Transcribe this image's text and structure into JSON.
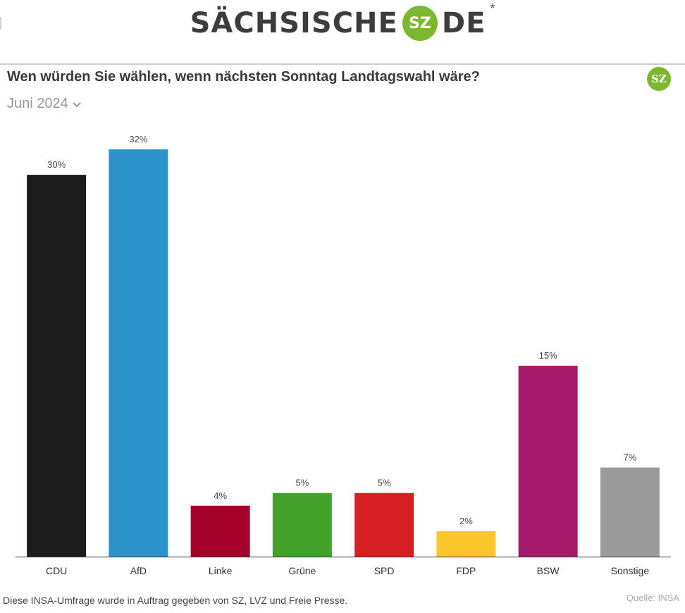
{
  "brand": {
    "word1": "SÄCHSISCHE",
    "badge": "SZ",
    "word2": "DE",
    "star": "*"
  },
  "logo_small": "SZ",
  "chart_data": {
    "type": "bar",
    "title": "Wen würden Sie wählen, wenn nächsten Sonntag Landtagswahl wäre?",
    "subtitle": "Juni 2024",
    "categories": [
      "CDU",
      "AfD",
      "Linke",
      "Grüne",
      "SPD",
      "FDP",
      "BSW",
      "Sonstige"
    ],
    "values": [
      30,
      32,
      4,
      5,
      5,
      2,
      15,
      7
    ],
    "value_labels": [
      "30%",
      "32%",
      "4%",
      "5%",
      "5%",
      "2%",
      "15%",
      "7%"
    ],
    "colors": [
      "#1c1c1c",
      "#2a93c9",
      "#a5002a",
      "#42a02b",
      "#d61f22",
      "#fcc72c",
      "#a51b6a",
      "#9b9b9b"
    ],
    "ylim": [
      0,
      32
    ],
    "grid": false,
    "xlabel": "",
    "ylabel": ""
  },
  "footer": {
    "note": "Diese INSA-Umfrage wurde in Auftrag gegeben von SZ, LVZ und Freie Presse.",
    "source": "Quelle: INSA"
  },
  "icons": {
    "dropdown": "chevron-down-icon",
    "brand": "sz-logo"
  }
}
